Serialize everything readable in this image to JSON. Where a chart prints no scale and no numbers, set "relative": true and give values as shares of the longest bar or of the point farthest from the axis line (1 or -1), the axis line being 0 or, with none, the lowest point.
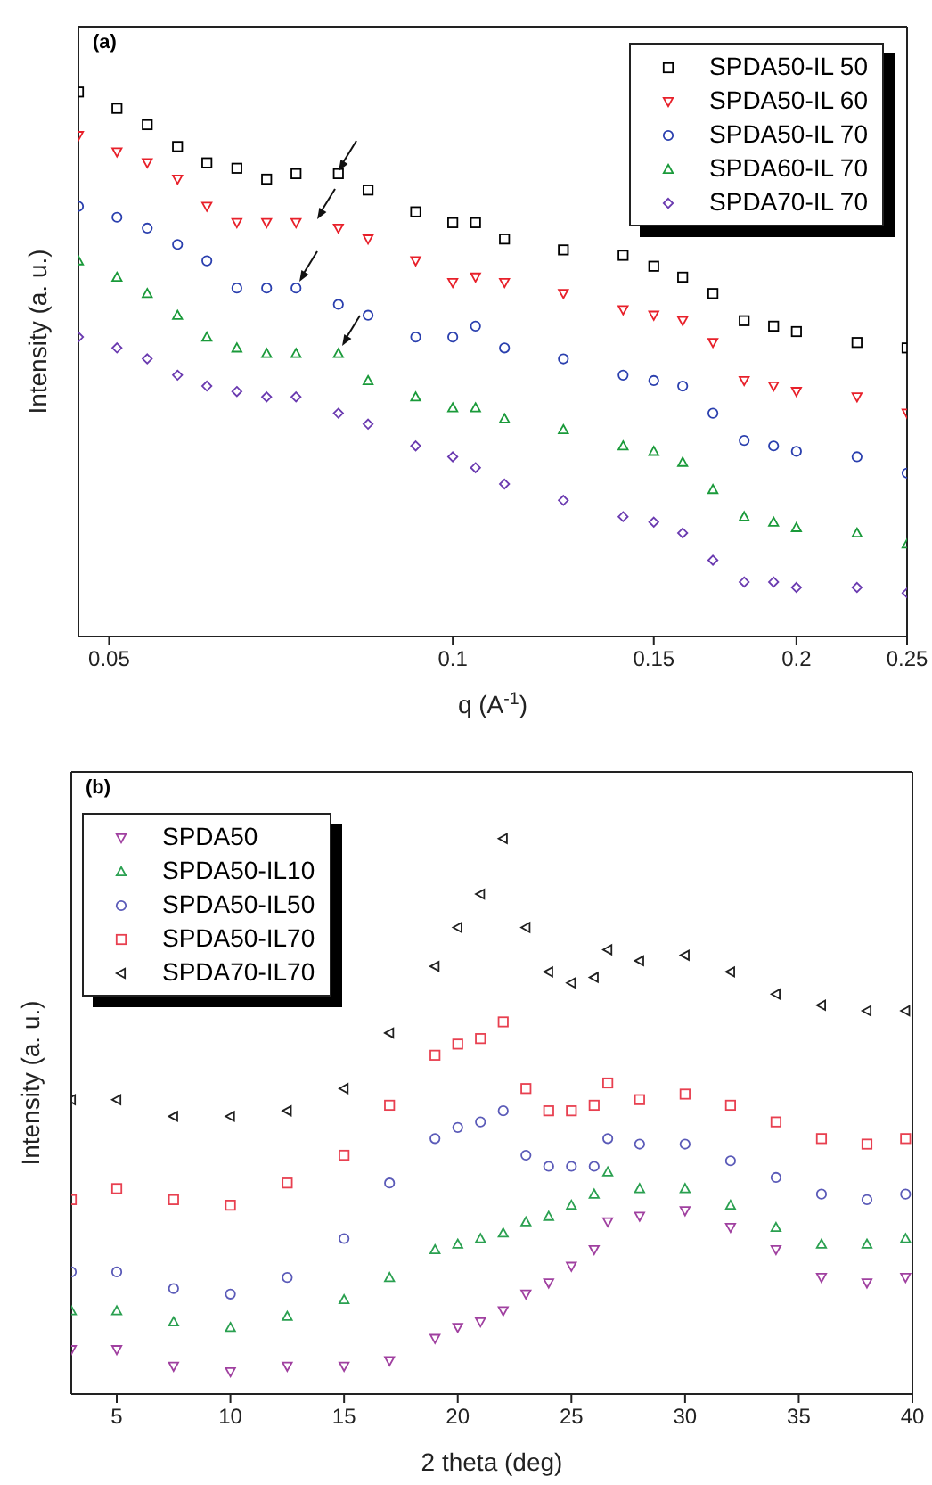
{
  "chart_data": [
    {
      "type": "scatter",
      "title": "(a)",
      "xlabel": "q (A$^{-1}$)",
      "ylabel": "Intensity (a. u.)",
      "relative": true,
      "log": "x",
      "xlim": [
        0.047,
        0.25
      ],
      "xticks": [
        0.05,
        0.1,
        0.15,
        0.2,
        0.25
      ],
      "legend": "top right",
      "x": [
        0.047,
        0.0508,
        0.054,
        0.0574,
        0.0609,
        0.0647,
        0.0687,
        0.0729,
        0.0794,
        0.0843,
        0.0928,
        0.1,
        0.1047,
        0.111,
        0.125,
        0.141,
        0.15,
        0.159,
        0.169,
        0.18,
        0.191,
        0.2,
        0.226,
        0.25
      ],
      "series": [
        {
          "name": "SPDA50-IL 50",
          "color": "#000000",
          "marker": "square",
          "values": [
            1.0,
            0.97,
            0.94,
            0.9,
            0.87,
            0.86,
            0.84,
            0.85,
            0.85,
            0.82,
            0.78,
            0.76,
            0.76,
            0.73,
            0.71,
            0.7,
            0.68,
            0.66,
            0.63,
            0.58,
            0.57,
            0.56,
            0.54,
            0.53
          ]
        },
        {
          "name": "SPDA50-IL 60",
          "color": "#e8202a",
          "marker": "triangle-down",
          "values": [
            0.92,
            0.89,
            0.87,
            0.84,
            0.79,
            0.76,
            0.76,
            0.76,
            0.75,
            0.73,
            0.69,
            0.65,
            0.66,
            0.65,
            0.63,
            0.6,
            0.59,
            0.58,
            0.54,
            0.47,
            0.46,
            0.45,
            0.44,
            0.41
          ]
        },
        {
          "name": "SPDA50-IL 70",
          "color": "#2a3fae",
          "marker": "circle",
          "values": [
            0.79,
            0.77,
            0.75,
            0.72,
            0.69,
            0.64,
            0.64,
            0.64,
            0.61,
            0.59,
            0.55,
            0.55,
            0.57,
            0.53,
            0.51,
            0.48,
            0.47,
            0.46,
            0.41,
            0.36,
            0.35,
            0.34,
            0.33,
            0.3
          ]
        },
        {
          "name": "SPDA60-IL 70",
          "color": "#1a9a3a",
          "marker": "triangle",
          "values": [
            0.69,
            0.66,
            0.63,
            0.59,
            0.55,
            0.53,
            0.52,
            0.52,
            0.52,
            0.47,
            0.44,
            0.42,
            0.42,
            0.4,
            0.38,
            0.35,
            0.34,
            0.32,
            0.27,
            0.22,
            0.21,
            0.2,
            0.19,
            0.17
          ]
        },
        {
          "name": "SPDA70-IL 70",
          "color": "#6a3ab0",
          "marker": "diamond",
          "values": [
            0.55,
            0.53,
            0.51,
            0.48,
            0.46,
            0.45,
            0.44,
            0.44,
            0.41,
            0.39,
            0.35,
            0.33,
            0.31,
            0.28,
            0.25,
            0.22,
            0.21,
            0.19,
            0.14,
            0.1,
            0.1,
            0.09,
            0.09,
            0.08
          ]
        }
      ]
    },
    {
      "type": "scatter",
      "title": "(b)",
      "xlabel": "2 theta (deg)",
      "ylabel": "Intensity (a. u.)",
      "relative": true,
      "xlim": [
        3,
        40
      ],
      "xticks": [
        5,
        10,
        15,
        20,
        25,
        30,
        35,
        40
      ],
      "legend": "top left",
      "x": [
        3,
        5,
        7.5,
        10,
        12.5,
        15,
        17,
        19,
        20,
        21,
        22,
        23,
        24,
        25,
        26,
        26.6,
        28,
        30,
        32,
        34,
        36,
        38,
        39.7
      ],
      "series": [
        {
          "name": "SPDA50",
          "color": "#a040a0",
          "marker": "triangle-down",
          "values": [
            0.08,
            0.08,
            0.05,
            0.04,
            0.05,
            0.05,
            0.06,
            0.1,
            0.12,
            0.13,
            0.15,
            0.18,
            0.2,
            0.23,
            0.26,
            0.31,
            0.32,
            0.33,
            0.3,
            0.26,
            0.21,
            0.2,
            0.21
          ]
        },
        {
          "name": "SPDA50-IL10",
          "color": "#2aa050",
          "marker": "triangle",
          "values": [
            0.15,
            0.15,
            0.13,
            0.12,
            0.14,
            0.17,
            0.21,
            0.26,
            0.27,
            0.28,
            0.29,
            0.31,
            0.32,
            0.34,
            0.36,
            0.4,
            0.37,
            0.37,
            0.34,
            0.3,
            0.27,
            0.27,
            0.28
          ]
        },
        {
          "name": "SPDA50-IL50",
          "color": "#5a5ab8",
          "marker": "circle",
          "values": [
            0.22,
            0.22,
            0.19,
            0.18,
            0.21,
            0.28,
            0.38,
            0.46,
            0.48,
            0.49,
            0.51,
            0.43,
            0.41,
            0.41,
            0.41,
            0.46,
            0.45,
            0.45,
            0.42,
            0.39,
            0.36,
            0.35,
            0.36
          ]
        },
        {
          "name": "SPDA50-IL70",
          "color": "#e84050",
          "marker": "square",
          "values": [
            0.35,
            0.37,
            0.35,
            0.34,
            0.38,
            0.43,
            0.52,
            0.61,
            0.63,
            0.64,
            0.67,
            0.55,
            0.51,
            0.51,
            0.52,
            0.56,
            0.53,
            0.54,
            0.52,
            0.49,
            0.46,
            0.45,
            0.46
          ]
        },
        {
          "name": "SPDA70-IL70",
          "color": "#202020",
          "marker": "triangle-left",
          "values": [
            0.53,
            0.53,
            0.5,
            0.5,
            0.51,
            0.55,
            0.65,
            0.77,
            0.84,
            0.9,
            1.0,
            0.84,
            0.76,
            0.74,
            0.75,
            0.8,
            0.78,
            0.79,
            0.76,
            0.72,
            0.7,
            0.69,
            0.69
          ]
        }
      ]
    }
  ]
}
